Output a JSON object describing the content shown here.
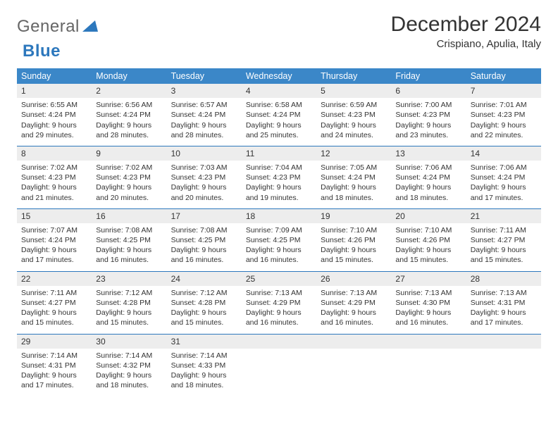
{
  "logo": {
    "gray": "General",
    "blue": "Blue"
  },
  "title": "December 2024",
  "location": "Crispiano, Apulia, Italy",
  "colors": {
    "header_bg": "#3b87c8",
    "week_border": "#2d78bd",
    "daynum_bg": "#ededed",
    "text": "#333333",
    "logo_gray": "#666666",
    "logo_blue": "#2d78bd"
  },
  "day_names": [
    "Sunday",
    "Monday",
    "Tuesday",
    "Wednesday",
    "Thursday",
    "Friday",
    "Saturday"
  ],
  "labels": {
    "sunrise": "Sunrise:",
    "sunset": "Sunset:",
    "daylight": "Daylight:"
  },
  "weeks": [
    [
      {
        "n": 1,
        "rise": "6:55 AM",
        "set": "4:24 PM",
        "dl1": "9 hours",
        "dl2": "and 29 minutes."
      },
      {
        "n": 2,
        "rise": "6:56 AM",
        "set": "4:24 PM",
        "dl1": "9 hours",
        "dl2": "and 28 minutes."
      },
      {
        "n": 3,
        "rise": "6:57 AM",
        "set": "4:24 PM",
        "dl1": "9 hours",
        "dl2": "and 28 minutes."
      },
      {
        "n": 4,
        "rise": "6:58 AM",
        "set": "4:24 PM",
        "dl1": "9 hours",
        "dl2": "and 25 minutes."
      },
      {
        "n": 5,
        "rise": "6:59 AM",
        "set": "4:23 PM",
        "dl1": "9 hours",
        "dl2": "and 24 minutes."
      },
      {
        "n": 6,
        "rise": "7:00 AM",
        "set": "4:23 PM",
        "dl1": "9 hours",
        "dl2": "and 23 minutes."
      },
      {
        "n": 7,
        "rise": "7:01 AM",
        "set": "4:23 PM",
        "dl1": "9 hours",
        "dl2": "and 22 minutes."
      }
    ],
    [
      {
        "n": 8,
        "rise": "7:02 AM",
        "set": "4:23 PM",
        "dl1": "9 hours",
        "dl2": "and 21 minutes."
      },
      {
        "n": 9,
        "rise": "7:02 AM",
        "set": "4:23 PM",
        "dl1": "9 hours",
        "dl2": "and 20 minutes."
      },
      {
        "n": 10,
        "rise": "7:03 AM",
        "set": "4:23 PM",
        "dl1": "9 hours",
        "dl2": "and 20 minutes."
      },
      {
        "n": 11,
        "rise": "7:04 AM",
        "set": "4:23 PM",
        "dl1": "9 hours",
        "dl2": "and 19 minutes."
      },
      {
        "n": 12,
        "rise": "7:05 AM",
        "set": "4:24 PM",
        "dl1": "9 hours",
        "dl2": "and 18 minutes."
      },
      {
        "n": 13,
        "rise": "7:06 AM",
        "set": "4:24 PM",
        "dl1": "9 hours",
        "dl2": "and 18 minutes."
      },
      {
        "n": 14,
        "rise": "7:06 AM",
        "set": "4:24 PM",
        "dl1": "9 hours",
        "dl2": "and 17 minutes."
      }
    ],
    [
      {
        "n": 15,
        "rise": "7:07 AM",
        "set": "4:24 PM",
        "dl1": "9 hours",
        "dl2": "and 17 minutes."
      },
      {
        "n": 16,
        "rise": "7:08 AM",
        "set": "4:25 PM",
        "dl1": "9 hours",
        "dl2": "and 16 minutes."
      },
      {
        "n": 17,
        "rise": "7:08 AM",
        "set": "4:25 PM",
        "dl1": "9 hours",
        "dl2": "and 16 minutes."
      },
      {
        "n": 18,
        "rise": "7:09 AM",
        "set": "4:25 PM",
        "dl1": "9 hours",
        "dl2": "and 16 minutes."
      },
      {
        "n": 19,
        "rise": "7:10 AM",
        "set": "4:26 PM",
        "dl1": "9 hours",
        "dl2": "and 15 minutes."
      },
      {
        "n": 20,
        "rise": "7:10 AM",
        "set": "4:26 PM",
        "dl1": "9 hours",
        "dl2": "and 15 minutes."
      },
      {
        "n": 21,
        "rise": "7:11 AM",
        "set": "4:27 PM",
        "dl1": "9 hours",
        "dl2": "and 15 minutes."
      }
    ],
    [
      {
        "n": 22,
        "rise": "7:11 AM",
        "set": "4:27 PM",
        "dl1": "9 hours",
        "dl2": "and 15 minutes."
      },
      {
        "n": 23,
        "rise": "7:12 AM",
        "set": "4:28 PM",
        "dl1": "9 hours",
        "dl2": "and 15 minutes."
      },
      {
        "n": 24,
        "rise": "7:12 AM",
        "set": "4:28 PM",
        "dl1": "9 hours",
        "dl2": "and 15 minutes."
      },
      {
        "n": 25,
        "rise": "7:13 AM",
        "set": "4:29 PM",
        "dl1": "9 hours",
        "dl2": "and 16 minutes."
      },
      {
        "n": 26,
        "rise": "7:13 AM",
        "set": "4:29 PM",
        "dl1": "9 hours",
        "dl2": "and 16 minutes."
      },
      {
        "n": 27,
        "rise": "7:13 AM",
        "set": "4:30 PM",
        "dl1": "9 hours",
        "dl2": "and 16 minutes."
      },
      {
        "n": 28,
        "rise": "7:13 AM",
        "set": "4:31 PM",
        "dl1": "9 hours",
        "dl2": "and 17 minutes."
      }
    ],
    [
      {
        "n": 29,
        "rise": "7:14 AM",
        "set": "4:31 PM",
        "dl1": "9 hours",
        "dl2": "and 17 minutes."
      },
      {
        "n": 30,
        "rise": "7:14 AM",
        "set": "4:32 PM",
        "dl1": "9 hours",
        "dl2": "and 18 minutes."
      },
      {
        "n": 31,
        "rise": "7:14 AM",
        "set": "4:33 PM",
        "dl1": "9 hours",
        "dl2": "and 18 minutes."
      },
      null,
      null,
      null,
      null
    ]
  ]
}
